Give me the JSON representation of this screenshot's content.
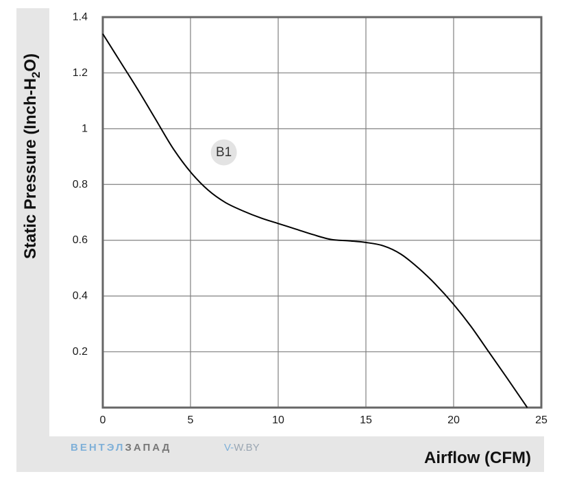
{
  "chart_data": {
    "type": "line",
    "ylabel": "Static Pressure (Inch-H2O)",
    "ylabel_parts": [
      "Static Pressure (Inch-H",
      "2",
      "O)"
    ],
    "xlabel": "Airflow (CFM)",
    "xlim": [
      0,
      25
    ],
    "ylim": [
      0,
      1.4
    ],
    "x_ticks": [
      0,
      5,
      10,
      15,
      20,
      25
    ],
    "x_tick_labels": [
      "0",
      "5",
      "10",
      "15",
      "20",
      "25"
    ],
    "y_ticks": [
      0.2,
      0.4,
      0.6,
      0.8,
      1.0,
      1.2,
      1.4
    ],
    "y_tick_labels": [
      "0.2",
      "0.4",
      "0.6",
      "0.8",
      "1",
      "1.2",
      "1.4"
    ],
    "grid": true,
    "series": [
      {
        "name": "B1",
        "x": [
          0,
          1,
          2,
          3,
          4,
          5,
          6,
          7,
          8,
          9,
          10,
          11,
          12,
          13,
          14,
          15,
          16,
          17,
          18,
          19,
          20,
          21,
          22,
          23,
          24.2
        ],
        "y": [
          1.34,
          1.24,
          1.14,
          1.035,
          0.93,
          0.845,
          0.78,
          0.735,
          0.705,
          0.68,
          0.66,
          0.64,
          0.62,
          0.603,
          0.598,
          0.592,
          0.58,
          0.55,
          0.5,
          0.44,
          0.37,
          0.29,
          0.2,
          0.11,
          0.0
        ]
      }
    ],
    "annotations": [
      {
        "text": "B1",
        "x": 6.9,
        "y": 0.915
      }
    ],
    "colors": {
      "line": "#000000",
      "grid": "#808080",
      "frame": "#666666",
      "annotation_bg": "#e3e3e3"
    }
  },
  "watermark": {
    "brand_a": "ВЕНТЭЛ",
    "brand_b": "ЗАПАД",
    "site_v": "V-",
    "site_rest": "W.BY"
  }
}
